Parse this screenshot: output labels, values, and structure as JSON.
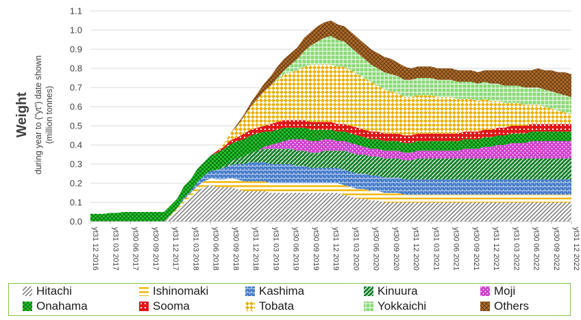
{
  "chart_data": {
    "type": "area",
    "title": "",
    "ylabel": "Weight",
    "ylabel_sub1": "during year to (\"yt\") date shown",
    "ylabel_sub2": "(million tonnes)",
    "ylim": [
      0,
      1.1
    ],
    "yticks": [
      "0.0",
      "0.1",
      "0.2",
      "0.3",
      "0.4",
      "0.5",
      "0.6",
      "0.7",
      "0.8",
      "0.9",
      "1.0",
      "1.1"
    ],
    "x_labels": [
      "yt31 12 2016",
      "yt31 03 2017",
      "yt30 06 2017",
      "yt30 09 2017",
      "yt31 12 2017",
      "yt31 03 2018",
      "yt30 06 2018",
      "yt30 09 2018",
      "yt31 12 2018",
      "yt31 03 2019",
      "yt30 06 2019",
      "yt30 09 2019",
      "yt31 12 2019",
      "yt31 03 2020",
      "yt30 06 2020",
      "yt30 09 2020",
      "yt31 12 2020",
      "yt31 03 2021",
      "yt30 06 2021",
      "yt30 09 2021",
      "yt31 12 2021",
      "yt31 03 2022",
      "yt30 06 2022",
      "yt30 09 2022",
      "yt31 12 2022"
    ],
    "stacked": true,
    "months_per_label": 3,
    "legend_position": "bottom",
    "series": [
      {
        "name": "Hitachi",
        "color": "#808080",
        "pattern": "diag",
        "values": [
          0,
          0,
          0,
          0,
          0,
          0,
          0,
          0,
          0,
          0,
          0,
          0,
          0.03,
          0.06,
          0.1,
          0.13,
          0.16,
          0.18,
          0.19,
          0.18,
          0.18,
          0.18,
          0.17,
          0.16,
          0.16,
          0.16,
          0.16,
          0.15,
          0.15,
          0.15,
          0.15,
          0.15,
          0.15,
          0.15,
          0.15,
          0.15,
          0.15,
          0.15,
          0.14,
          0.13,
          0.12,
          0.12,
          0.11,
          0.11,
          0.1,
          0.1,
          0.1,
          0.1,
          0.1,
          0.1,
          0.1,
          0.1,
          0.1,
          0.1,
          0.1,
          0.1,
          0.1,
          0.1,
          0.1,
          0.1,
          0.1,
          0.1,
          0.1,
          0.1,
          0.1,
          0.1,
          0.1,
          0.1,
          0.1,
          0.1,
          0.1,
          0.1,
          0.1
        ]
      },
      {
        "name": "Ishinomaki",
        "color": "#f2b705",
        "pattern": "hbar",
        "values": [
          0,
          0,
          0,
          0,
          0,
          0,
          0,
          0,
          0,
          0,
          0,
          0,
          0.005,
          0.01,
          0.015,
          0.02,
          0.025,
          0.03,
          0.035,
          0.04,
          0.04,
          0.045,
          0.05,
          0.05,
          0.05,
          0.05,
          0.05,
          0.05,
          0.05,
          0.05,
          0.05,
          0.05,
          0.05,
          0.05,
          0.05,
          0.05,
          0.05,
          0.05,
          0.05,
          0.05,
          0.05,
          0.05,
          0.05,
          0.05,
          0.05,
          0.05,
          0.05,
          0.04,
          0.04,
          0.04,
          0.04,
          0.04,
          0.04,
          0.04,
          0.04,
          0.04,
          0.04,
          0.04,
          0.04,
          0.04,
          0.04,
          0.04,
          0.04,
          0.04,
          0.04,
          0.04,
          0.04,
          0.04,
          0.04,
          0.04,
          0.04,
          0.04,
          0.04
        ]
      },
      {
        "name": "Kashima",
        "color": "#3f78c8",
        "pattern": "brick",
        "values": [
          0,
          0,
          0,
          0,
          0,
          0,
          0,
          0,
          0,
          0,
          0,
          0,
          0,
          0,
          0.01,
          0.01,
          0.02,
          0.03,
          0.04,
          0.05,
          0.06,
          0.07,
          0.08,
          0.09,
          0.1,
          0.1,
          0.1,
          0.1,
          0.1,
          0.1,
          0.1,
          0.09,
          0.09,
          0.08,
          0.08,
          0.08,
          0.08,
          0.08,
          0.08,
          0.08,
          0.08,
          0.08,
          0.08,
          0.08,
          0.08,
          0.08,
          0.08,
          0.08,
          0.08,
          0.08,
          0.08,
          0.08,
          0.08,
          0.08,
          0.08,
          0.08,
          0.08,
          0.08,
          0.08,
          0.08,
          0.08,
          0.08,
          0.08,
          0.08,
          0.08,
          0.08,
          0.08,
          0.08,
          0.08,
          0.08,
          0.08,
          0.08,
          0.08
        ]
      },
      {
        "name": "Kinuura",
        "color": "#17802c",
        "pattern": "wide",
        "values": [
          0,
          0,
          0,
          0,
          0,
          0,
          0,
          0,
          0,
          0,
          0,
          0,
          0,
          0,
          0,
          0,
          0,
          0,
          0,
          0,
          0.01,
          0.02,
          0.03,
          0.04,
          0.05,
          0.06,
          0.07,
          0.08,
          0.08,
          0.08,
          0.08,
          0.08,
          0.08,
          0.08,
          0.08,
          0.09,
          0.09,
          0.09,
          0.1,
          0.1,
          0.1,
          0.1,
          0.1,
          0.1,
          0.1,
          0.1,
          0.1,
          0.1,
          0.1,
          0.11,
          0.11,
          0.11,
          0.11,
          0.11,
          0.11,
          0.11,
          0.11,
          0.11,
          0.11,
          0.11,
          0.11,
          0.11,
          0.11,
          0.11,
          0.11,
          0.11,
          0.11,
          0.11,
          0.11,
          0.11,
          0.11,
          0.11,
          0.11
        ]
      },
      {
        "name": "Moji",
        "color": "#d040d0",
        "pattern": "dots",
        "values": [
          0,
          0,
          0,
          0,
          0,
          0,
          0,
          0,
          0,
          0,
          0,
          0,
          0,
          0,
          0,
          0,
          0,
          0,
          0,
          0,
          0,
          0,
          0,
          0,
          0,
          0,
          0.01,
          0.02,
          0.03,
          0.04,
          0.05,
          0.06,
          0.06,
          0.06,
          0.06,
          0.06,
          0.06,
          0.05,
          0.05,
          0.05,
          0.05,
          0.04,
          0.04,
          0.04,
          0.04,
          0.04,
          0.04,
          0.04,
          0.04,
          0.04,
          0.04,
          0.04,
          0.04,
          0.04,
          0.04,
          0.04,
          0.05,
          0.05,
          0.05,
          0.06,
          0.06,
          0.07,
          0.07,
          0.08,
          0.08,
          0.08,
          0.09,
          0.09,
          0.09,
          0.09,
          0.09,
          0.09,
          0.09
        ]
      },
      {
        "name": "Onahama",
        "color": "#22c22a",
        "pattern": "check",
        "values": [
          0.04,
          0.04,
          0.04,
          0.045,
          0.045,
          0.05,
          0.05,
          0.05,
          0.05,
          0.05,
          0.05,
          0.05,
          0.05,
          0.05,
          0.06,
          0.06,
          0.07,
          0.07,
          0.08,
          0.09,
          0.09,
          0.09,
          0.09,
          0.09,
          0.09,
          0.09,
          0.08,
          0.07,
          0.07,
          0.07,
          0.06,
          0.06,
          0.06,
          0.06,
          0.06,
          0.05,
          0.05,
          0.05,
          0.05,
          0.05,
          0.05,
          0.05,
          0.05,
          0.05,
          0.05,
          0.05,
          0.05,
          0.05,
          0.05,
          0.05,
          0.05,
          0.05,
          0.05,
          0.05,
          0.05,
          0.05,
          0.05,
          0.05,
          0.05,
          0.05,
          0.05,
          0.05,
          0.05,
          0.05,
          0.05,
          0.05,
          0.05,
          0.05,
          0.05,
          0.05,
          0.05,
          0.05,
          0.05
        ]
      },
      {
        "name": "Sooma",
        "color": "#e01818",
        "pattern": "sq",
        "values": [
          0,
          0,
          0,
          0,
          0,
          0,
          0,
          0,
          0,
          0,
          0,
          0,
          0,
          0,
          0,
          0,
          0,
          0,
          0,
          0.01,
          0.01,
          0.02,
          0.02,
          0.03,
          0.03,
          0.03,
          0.03,
          0.04,
          0.04,
          0.04,
          0.04,
          0.04,
          0.04,
          0.04,
          0.04,
          0.04,
          0.04,
          0.04,
          0.04,
          0.04,
          0.04,
          0.04,
          0.04,
          0.04,
          0.04,
          0.04,
          0.04,
          0.04,
          0.04,
          0.04,
          0.04,
          0.04,
          0.04,
          0.04,
          0.04,
          0.04,
          0.04,
          0.04,
          0.04,
          0.04,
          0.04,
          0.04,
          0.04,
          0.04,
          0.04,
          0.04,
          0.04,
          0.04,
          0.04,
          0.04,
          0.04,
          0.04,
          0.04
        ]
      },
      {
        "name": "Tobata",
        "color": "#e8b000",
        "pattern": "diamond",
        "values": [
          0,
          0,
          0,
          0,
          0,
          0,
          0,
          0,
          0,
          0,
          0,
          0,
          0,
          0,
          0,
          0,
          0,
          0,
          0,
          0,
          0.02,
          0.04,
          0.06,
          0.09,
          0.12,
          0.15,
          0.18,
          0.2,
          0.22,
          0.24,
          0.25,
          0.26,
          0.28,
          0.3,
          0.3,
          0.3,
          0.3,
          0.3,
          0.3,
          0.29,
          0.28,
          0.27,
          0.26,
          0.24,
          0.23,
          0.22,
          0.21,
          0.2,
          0.2,
          0.2,
          0.2,
          0.2,
          0.19,
          0.19,
          0.19,
          0.18,
          0.17,
          0.17,
          0.16,
          0.16,
          0.15,
          0.14,
          0.13,
          0.12,
          0.12,
          0.11,
          0.1,
          0.1,
          0.09,
          0.08,
          0.07,
          0.06,
          0.05
        ]
      },
      {
        "name": "Yokkaichi",
        "color": "#8bd878",
        "pattern": "lgrid",
        "values": [
          0,
          0,
          0,
          0,
          0,
          0,
          0,
          0,
          0,
          0,
          0,
          0,
          0,
          0,
          0,
          0,
          0,
          0,
          0,
          0,
          0,
          0,
          0,
          0,
          0,
          0,
          0,
          0,
          0.01,
          0.02,
          0.04,
          0.06,
          0.08,
          0.1,
          0.12,
          0.14,
          0.15,
          0.14,
          0.13,
          0.12,
          0.11,
          0.1,
          0.09,
          0.09,
          0.09,
          0.09,
          0.09,
          0.09,
          0.09,
          0.09,
          0.09,
          0.09,
          0.09,
          0.09,
          0.09,
          0.09,
          0.09,
          0.09,
          0.09,
          0.09,
          0.09,
          0.09,
          0.09,
          0.09,
          0.09,
          0.09,
          0.09,
          0.09,
          0.09,
          0.09,
          0.09,
          0.09,
          0.09
        ]
      },
      {
        "name": "Others",
        "color": "#b06c2a",
        "pattern": "coarse",
        "values": [
          0,
          0,
          0,
          0,
          0,
          0,
          0,
          0,
          0,
          0,
          0,
          0,
          0,
          0,
          0,
          0,
          0,
          0,
          0,
          0,
          0,
          0,
          0.01,
          0.01,
          0.02,
          0.03,
          0.04,
          0.05,
          0.06,
          0.06,
          0.06,
          0.06,
          0.07,
          0.07,
          0.08,
          0.08,
          0.08,
          0.08,
          0.08,
          0.08,
          0.08,
          0.08,
          0.08,
          0.08,
          0.08,
          0.08,
          0.07,
          0.07,
          0.06,
          0.06,
          0.06,
          0.06,
          0.06,
          0.06,
          0.06,
          0.06,
          0.06,
          0.06,
          0.06,
          0.06,
          0.07,
          0.07,
          0.08,
          0.08,
          0.08,
          0.09,
          0.09,
          0.1,
          0.1,
          0.11,
          0.11,
          0.12,
          0.12
        ]
      }
    ]
  },
  "legend": {
    "items": [
      "Hitachi",
      "Ishinomaki",
      "Kashima",
      "Kinuura",
      "Moji",
      "Onahama",
      "Sooma",
      "Tobata",
      "Yokkaichi",
      "Others"
    ]
  }
}
